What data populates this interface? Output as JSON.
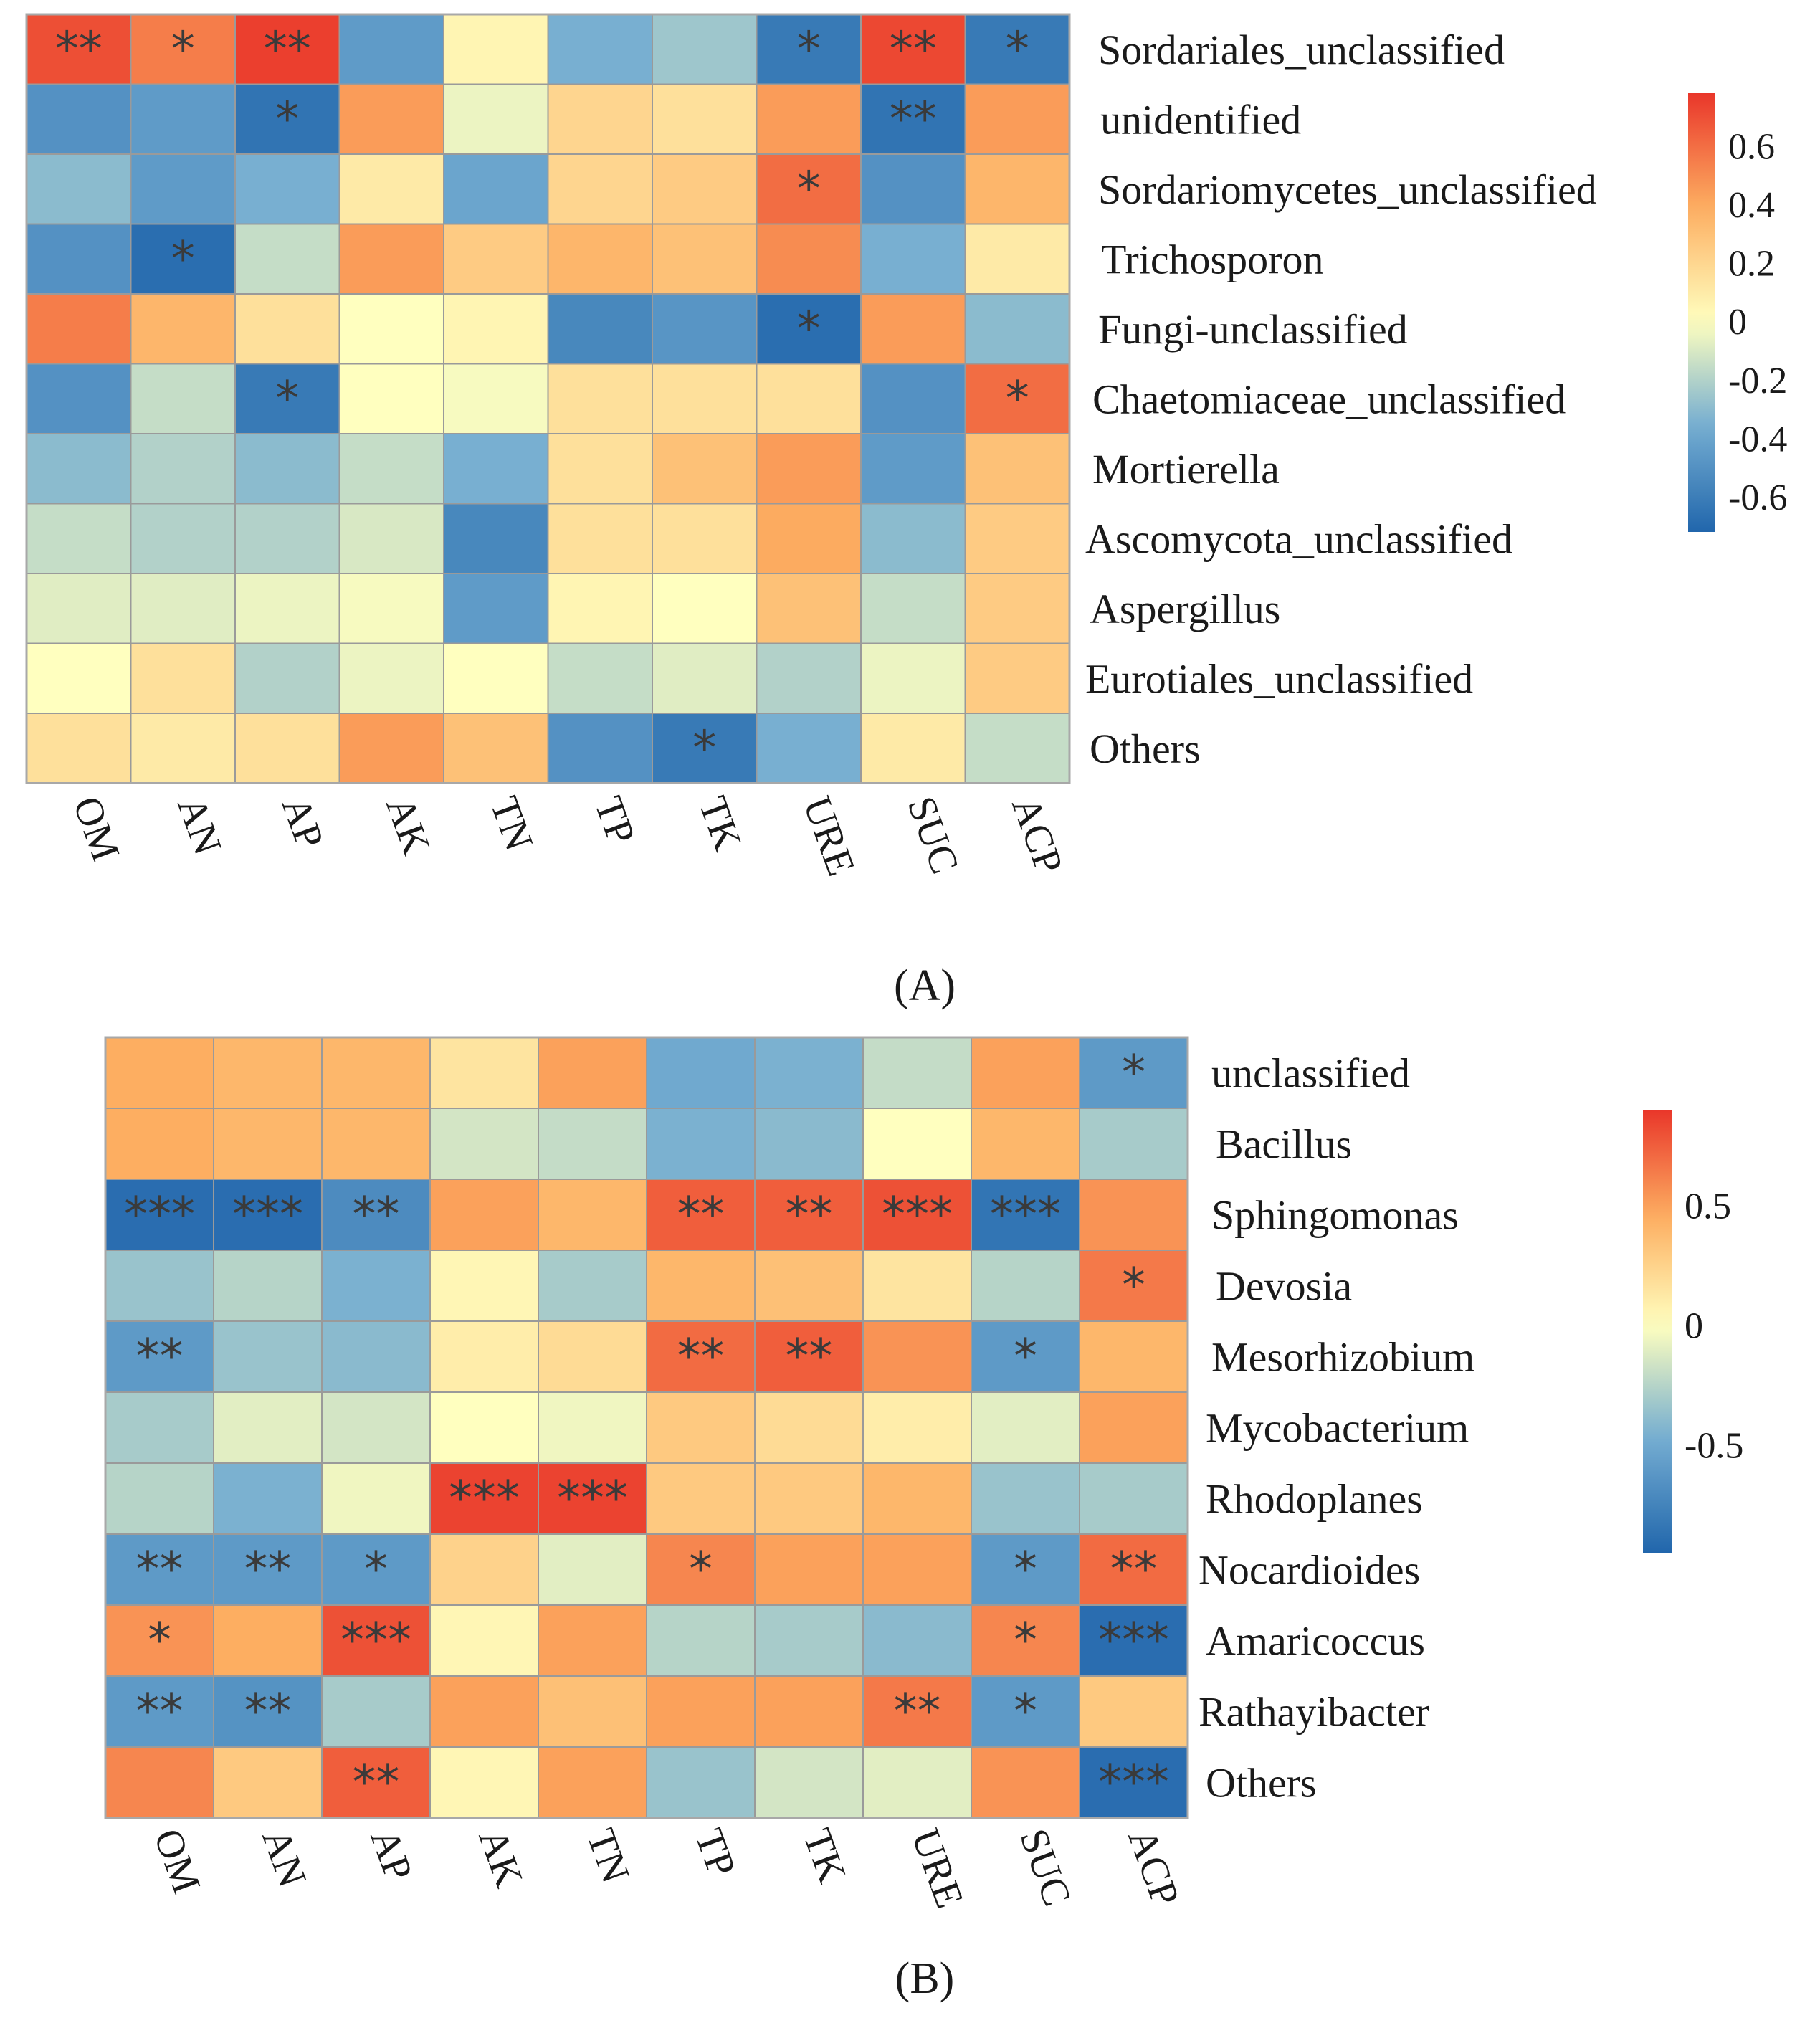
{
  "panels": [
    {
      "label": "(A)",
      "chart_data": {
        "type": "heatmap",
        "title": "",
        "columns": [
          "OM",
          "AN",
          "AP",
          "AK",
          "TN",
          "TP",
          "TK",
          "URE",
          "SUC",
          "ACP"
        ],
        "rows": [
          "Sordariales_unclassified",
          "unidentified",
          "Sordariomycetes_unclassified",
          "Trichosporon",
          "Fungi-unclassified",
          "Chaetomiaceae_unclassified",
          "Mortierella",
          "Ascomycota_unclassified",
          "Aspergillus",
          "Eurotiales_unclassified",
          "Others"
        ],
        "values": [
          [
            0.7,
            0.55,
            0.75,
            -0.45,
            0.05,
            -0.35,
            -0.25,
            -0.62,
            0.72,
            -0.62
          ],
          [
            -0.5,
            -0.45,
            -0.65,
            0.45,
            -0.05,
            0.2,
            0.15,
            0.45,
            -0.65,
            0.45
          ],
          [
            -0.3,
            -0.45,
            -0.35,
            0.1,
            -0.4,
            0.2,
            0.25,
            0.6,
            -0.5,
            0.35
          ],
          [
            -0.5,
            -0.68,
            -0.15,
            0.45,
            0.25,
            0.35,
            0.3,
            0.5,
            -0.35,
            0.1
          ],
          [
            0.55,
            0.35,
            0.15,
            0.0,
            0.05,
            -0.55,
            -0.48,
            -0.68,
            0.45,
            -0.3
          ],
          [
            -0.5,
            -0.15,
            -0.62,
            0.0,
            -0.02,
            0.15,
            0.15,
            0.15,
            -0.5,
            0.6
          ],
          [
            -0.3,
            -0.2,
            -0.3,
            -0.15,
            -0.35,
            0.15,
            0.3,
            0.45,
            -0.45,
            0.3
          ],
          [
            -0.15,
            -0.2,
            -0.2,
            -0.1,
            -0.55,
            0.15,
            0.15,
            0.4,
            -0.3,
            0.25
          ],
          [
            -0.08,
            -0.08,
            -0.05,
            -0.02,
            -0.45,
            0.05,
            0.0,
            0.3,
            -0.15,
            0.25
          ],
          [
            0.0,
            0.15,
            -0.2,
            -0.05,
            0.0,
            -0.15,
            -0.08,
            -0.2,
            -0.05,
            0.25
          ],
          [
            0.15,
            0.1,
            0.15,
            0.45,
            0.3,
            -0.5,
            -0.62,
            -0.35,
            0.1,
            -0.15
          ]
        ],
        "significance": [
          [
            "**",
            "*",
            "**",
            "",
            "",
            "",
            "",
            "*",
            "**",
            "*"
          ],
          [
            "",
            "",
            "*",
            "",
            "",
            "",
            "",
            "",
            "**",
            ""
          ],
          [
            "",
            "",
            "",
            "",
            "",
            "",
            "",
            "*",
            "",
            ""
          ],
          [
            "",
            "*",
            "",
            "",
            "",
            "",
            "",
            "",
            "",
            ""
          ],
          [
            "",
            "",
            "",
            "",
            "",
            "",
            "",
            "*",
            "",
            ""
          ],
          [
            "",
            "",
            "*",
            "",
            "",
            "",
            "",
            "",
            "",
            "*"
          ],
          [
            "",
            "",
            "",
            "",
            "",
            "",
            "",
            "",
            "",
            ""
          ],
          [
            "",
            "",
            "",
            "",
            "",
            "",
            "",
            "",
            "",
            ""
          ],
          [
            "",
            "",
            "",
            "",
            "",
            "",
            "",
            "",
            "",
            ""
          ],
          [
            "",
            "",
            "",
            "",
            "",
            "",
            "",
            "",
            "",
            ""
          ],
          [
            "",
            "",
            "",
            "",
            "",
            "",
            "*",
            "",
            "",
            ""
          ]
        ],
        "colorbar": {
          "range": [
            -0.72,
            0.78
          ],
          "ticks": [
            0.6,
            0.4,
            0.2,
            0,
            -0.2,
            -0.4,
            -0.6
          ],
          "tick_labels": [
            "0.6",
            "0.4",
            "0.2",
            "0",
            "-0.2",
            "-0.4",
            "-0.6"
          ]
        }
      }
    },
    {
      "label": "(B)",
      "chart_data": {
        "type": "heatmap",
        "title": "",
        "columns": [
          "OM",
          "AN",
          "AP",
          "AK",
          "TN",
          "TP",
          "TK",
          "URE",
          "SUC",
          "ACP"
        ],
        "rows": [
          "unclassified",
          "Bacillus",
          "Sphingomonas",
          "Devosia",
          "Mesorhizobium",
          "Mycobacterium",
          "Rhodoplanes",
          "Nocardioides",
          "Amaricoccus",
          "Rathayibacter",
          "Others"
        ],
        "values": [
          [
            0.45,
            0.4,
            0.4,
            0.15,
            0.5,
            -0.5,
            -0.45,
            -0.2,
            0.5,
            -0.6
          ],
          [
            0.45,
            0.4,
            0.4,
            -0.15,
            -0.2,
            -0.45,
            -0.4,
            0.0,
            0.4,
            -0.3
          ],
          [
            -0.9,
            -0.9,
            -0.7,
            0.5,
            0.4,
            0.75,
            0.75,
            0.8,
            -0.85,
            0.55
          ],
          [
            -0.35,
            -0.25,
            -0.45,
            0.05,
            -0.3,
            0.4,
            0.35,
            0.15,
            -0.25,
            0.65
          ],
          [
            -0.6,
            -0.35,
            -0.4,
            0.1,
            0.2,
            0.7,
            0.75,
            0.55,
            -0.6,
            0.4
          ],
          [
            -0.3,
            -0.1,
            -0.15,
            0.0,
            -0.05,
            0.3,
            0.2,
            0.1,
            -0.1,
            0.5
          ],
          [
            -0.25,
            -0.45,
            -0.05,
            0.85,
            0.85,
            0.3,
            0.3,
            0.4,
            -0.35,
            -0.3
          ],
          [
            -0.6,
            -0.6,
            -0.6,
            0.25,
            -0.1,
            0.6,
            0.5,
            0.5,
            -0.6,
            0.7
          ],
          [
            0.55,
            0.45,
            0.8,
            0.05,
            0.5,
            -0.25,
            -0.3,
            -0.4,
            0.6,
            -0.9
          ],
          [
            -0.6,
            -0.65,
            -0.3,
            0.5,
            0.35,
            0.5,
            0.5,
            0.65,
            -0.6,
            0.3
          ],
          [
            0.6,
            0.3,
            0.75,
            0.05,
            0.5,
            -0.35,
            -0.15,
            -0.1,
            0.55,
            -0.9
          ]
        ],
        "significance": [
          [
            "",
            "",
            "",
            "",
            "",
            "",
            "",
            "",
            "",
            "*"
          ],
          [
            "",
            "",
            "",
            "",
            "",
            "",
            "",
            "",
            "",
            ""
          ],
          [
            "***",
            "***",
            "**",
            "",
            "",
            "**",
            "**",
            "***",
            "***",
            ""
          ],
          [
            "",
            "",
            "",
            "",
            "",
            "",
            "",
            "",
            "",
            "*"
          ],
          [
            "**",
            "",
            "",
            "",
            "",
            "**",
            "**",
            "",
            "*",
            ""
          ],
          [
            "",
            "",
            "",
            "",
            "",
            "",
            "",
            "",
            "",
            ""
          ],
          [
            "",
            "",
            "",
            "***",
            "***",
            "",
            "",
            "",
            "",
            ""
          ],
          [
            "**",
            "**",
            "*",
            "",
            "",
            "*",
            "",
            "",
            "*",
            "**"
          ],
          [
            "*",
            "",
            "***",
            "",
            "",
            "",
            "",
            "",
            "*",
            "***"
          ],
          [
            "**",
            "**",
            "",
            "",
            "",
            "",
            "",
            "**",
            "*",
            ""
          ],
          [
            "",
            "",
            "**",
            "",
            "",
            "",
            "",
            "",
            "",
            "***"
          ]
        ],
        "colorbar": {
          "range": [
            -0.95,
            0.9
          ],
          "ticks": [
            0.5,
            0,
            -0.5
          ],
          "tick_labels": [
            "0.5",
            "0",
            "-0.5"
          ]
        }
      }
    }
  ],
  "colors": {
    "negative": "#2166ac",
    "mid_negative": "#74add1",
    "neutral": "#ffffbf",
    "mid_positive": "#fdae61",
    "positive": "#e9362a",
    "grid": "#9a9a9a",
    "border": "#a8a8a8"
  }
}
